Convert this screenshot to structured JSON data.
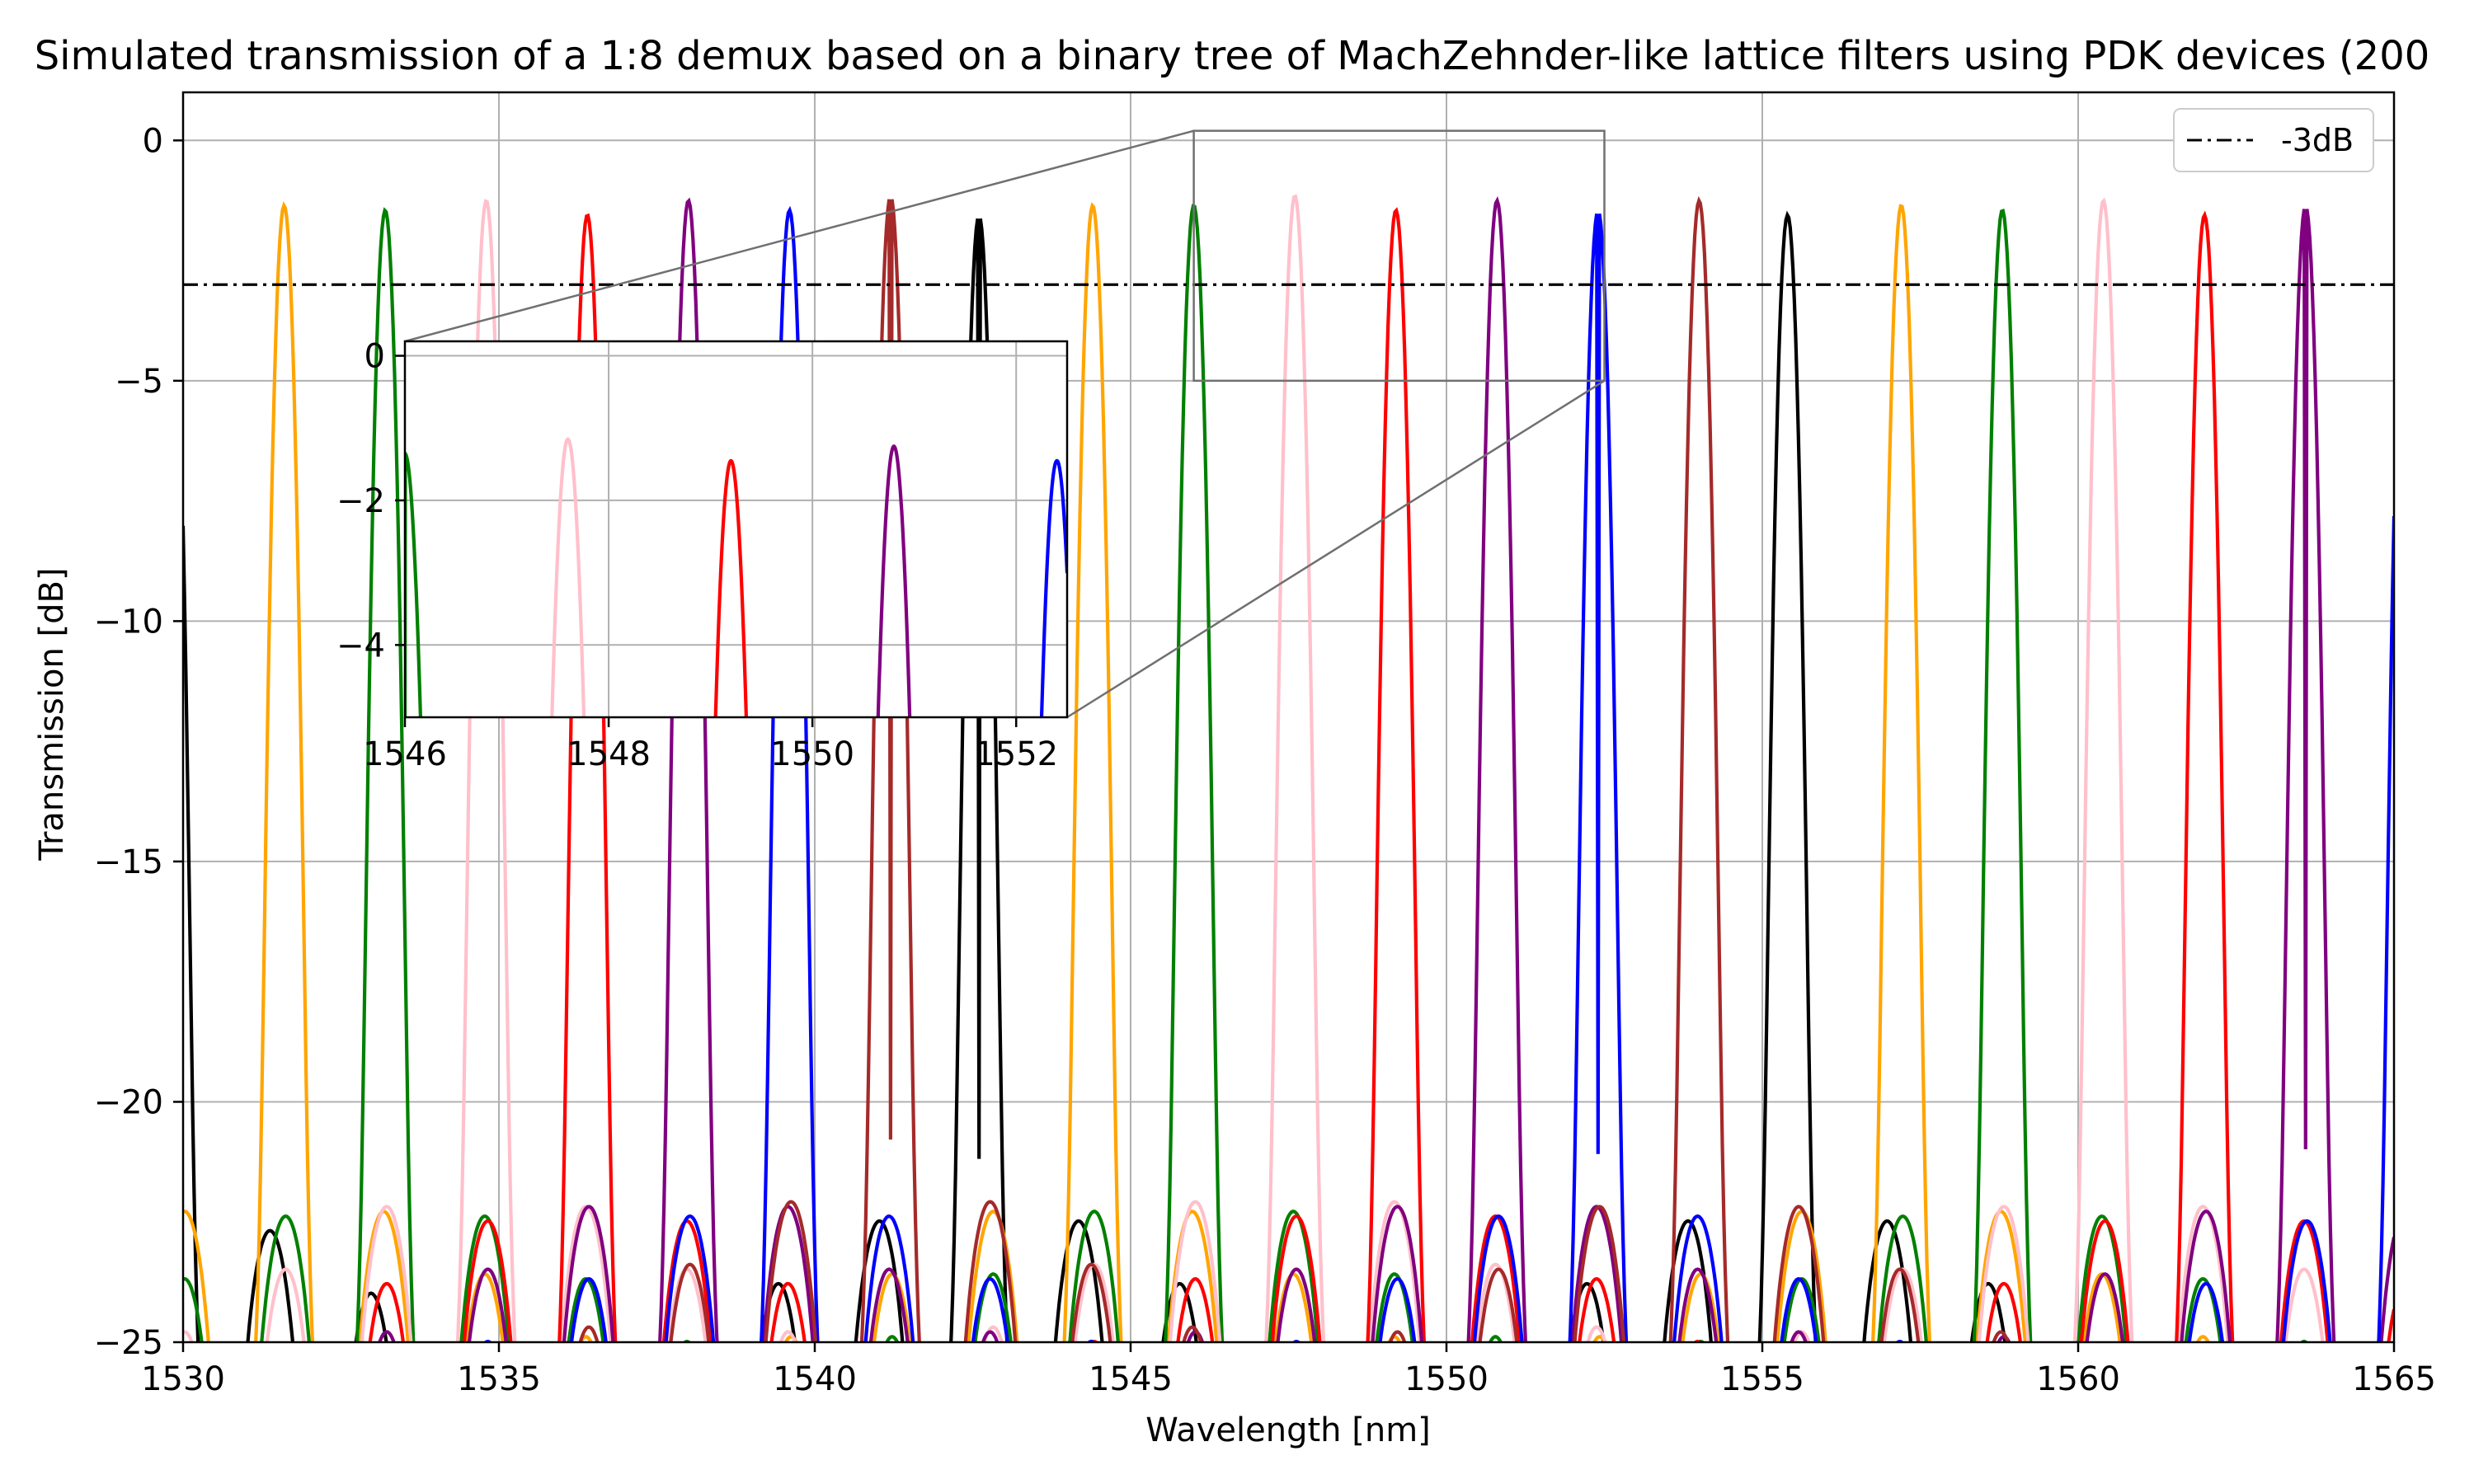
{
  "chart_data": {
    "type": "line",
    "title": "Simulated transmission of a 1:8 demux based on a binary tree of MachZehnder-like lattice filters using PDK devices (200",
    "xlabel": "Wavelength [nm]",
    "ylabel": "Transmission [dB]",
    "xlim": [
      1530,
      1565
    ],
    "ylim": [
      -25,
      1
    ],
    "xticks": [
      1530,
      1535,
      1540,
      1545,
      1550,
      1555,
      1560,
      1565
    ],
    "yticks": [
      0,
      -5,
      -10,
      -15,
      -20,
      -25
    ],
    "grid": true,
    "legend": {
      "placement": "top-right",
      "entries": [
        "-3dB"
      ]
    },
    "reference_line": {
      "name": "-3dB",
      "y": -3,
      "style": "dash-dot",
      "color": "#000000"
    },
    "channel_spacing_nm": 1.6,
    "channels": [
      {
        "color": "#000000",
        "centers": [
          1529.8,
          1542.6,
          1555.4
        ],
        "peak_db": [
          -1.8,
          -1.6,
          -1.6
        ]
      },
      {
        "color": "#FFA500",
        "centers": [
          1531.6,
          1544.4,
          1557.2
        ],
        "peak_db": [
          -1.4,
          -1.4,
          -1.4
        ]
      },
      {
        "color": "#008000",
        "centers": [
          1533.2,
          1546.0,
          1558.8
        ],
        "peak_db": [
          -1.5,
          -1.4,
          -1.5
        ]
      },
      {
        "color": "#FFC0CB",
        "centers": [
          1534.8,
          1547.6,
          1560.4
        ],
        "peak_db": [
          -1.3,
          -1.2,
          -1.3
        ]
      },
      {
        "color": "#FF0000",
        "centers": [
          1536.4,
          1549.2,
          1562.0
        ],
        "peak_db": [
          -1.6,
          -1.5,
          -1.6
        ]
      },
      {
        "color": "#800080",
        "centers": [
          1538.0,
          1550.8,
          1563.6
        ],
        "peak_db": [
          -1.3,
          -1.3,
          -1.4
        ]
      },
      {
        "color": "#0000FF",
        "centers": [
          1539.6,
          1552.4,
          1565.2
        ],
        "peak_db": [
          -1.5,
          -1.5,
          -1.6
        ]
      },
      {
        "color": "#A52A2A",
        "centers": [
          1541.2,
          1554.0
        ],
        "peak_db": [
          -1.2,
          -1.3
        ]
      }
    ],
    "inset": {
      "xlim": [
        1546,
        1552.5
      ],
      "ylim": [
        -5,
        0.2
      ],
      "xticks": [
        1546,
        1548,
        1550,
        1552
      ],
      "yticks": [
        0,
        -2,
        -4
      ]
    }
  }
}
